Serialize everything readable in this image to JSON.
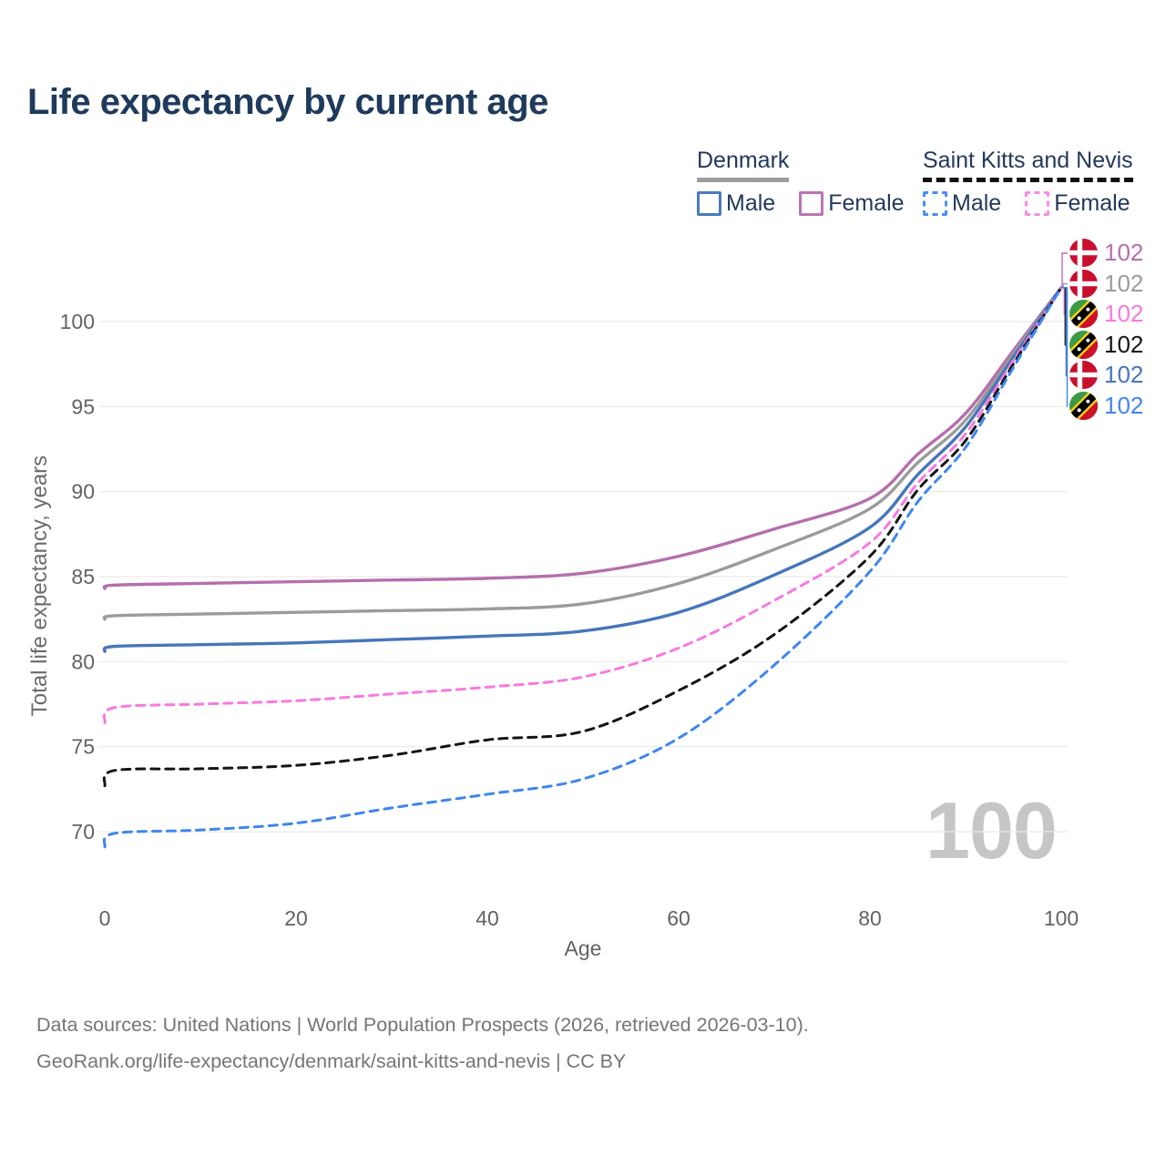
{
  "title": "Life expectancy by current age",
  "legend": {
    "groups": [
      {
        "label": "Denmark",
        "line_style": "solid",
        "underline_color": "#9e9e9e",
        "items": [
          {
            "label": "Male",
            "color": "#4a79bd"
          },
          {
            "label": "Female",
            "color": "#bb74b2"
          }
        ]
      },
      {
        "label": "Saint Kitts and Nevis",
        "line_style": "dashed",
        "underline_color": "#111111",
        "items": [
          {
            "label": "Male",
            "color": "#4a8cf5"
          },
          {
            "label": "Female",
            "color": "#fa8ae4"
          }
        ]
      }
    ]
  },
  "chart_data": {
    "type": "line",
    "title": "Life expectancy by current age",
    "xlabel": "Age",
    "ylabel": "Total life expectancy, years",
    "x_ticks": [
      0,
      20,
      40,
      60,
      80,
      100
    ],
    "y_ticks": [
      70,
      75,
      80,
      85,
      90,
      95,
      100
    ],
    "xlim": [
      0,
      100
    ],
    "ylim": [
      69,
      103
    ],
    "grid": "horizontal",
    "legend_position": "top-right",
    "watermark": "100",
    "ages": [
      0,
      1,
      10,
      20,
      30,
      40,
      50,
      60,
      70,
      80,
      85,
      90,
      95,
      100
    ],
    "series": [
      {
        "name": "Denmark Female",
        "country": "Denmark",
        "sex": "Female",
        "color": "#b56fad",
        "dash": false,
        "values": [
          84.3,
          84.5,
          84.6,
          84.7,
          84.8,
          84.9,
          85.2,
          86.2,
          87.8,
          89.6,
          92.2,
          94.6,
          98.3,
          102
        ],
        "end_label": "102"
      },
      {
        "name": "Denmark Both sexes",
        "country": "Denmark",
        "sex": "Both sexes",
        "color": "#9b9b9b",
        "dash": false,
        "values": [
          82.5,
          82.7,
          82.8,
          82.9,
          83.0,
          83.1,
          83.4,
          84.6,
          86.6,
          89.0,
          91.7,
          94.2,
          98.1,
          102
        ],
        "end_label": "102"
      },
      {
        "name": "Denmark Male",
        "country": "Denmark",
        "sex": "Male",
        "color": "#4676ba",
        "dash": false,
        "values": [
          80.6,
          80.9,
          81.0,
          81.1,
          81.3,
          81.5,
          81.8,
          82.9,
          85.1,
          87.9,
          91.0,
          93.8,
          97.9,
          102
        ],
        "end_label": "102"
      },
      {
        "name": "Saint Kitts and Nevis Female",
        "country": "Saint Kitts and Nevis",
        "sex": "Female",
        "color": "#f879e0",
        "dash": true,
        "values": [
          76.4,
          77.3,
          77.5,
          77.7,
          78.1,
          78.5,
          79.1,
          80.8,
          83.6,
          87.0,
          90.5,
          93.4,
          97.7,
          102
        ],
        "end_label": "102"
      },
      {
        "name": "Saint Kitts and Nevis Both sexes",
        "country": "Saint Kitts and Nevis",
        "sex": "Both sexes",
        "color": "#141414",
        "dash": true,
        "values": [
          72.7,
          73.6,
          73.7,
          73.9,
          74.5,
          75.4,
          75.9,
          78.3,
          81.6,
          86.2,
          90.1,
          93.0,
          97.5,
          102
        ],
        "end_label": "102"
      },
      {
        "name": "Saint Kitts and Nevis Male",
        "country": "Saint Kitts and Nevis",
        "sex": "Male",
        "color": "#3f86ef",
        "dash": true,
        "values": [
          69.1,
          69.9,
          70.1,
          70.5,
          71.4,
          72.2,
          73.1,
          75.5,
          79.8,
          85.3,
          89.4,
          92.6,
          97.3,
          102
        ],
        "end_label": "102"
      }
    ],
    "end_labels": [
      {
        "value": "102",
        "flag": "denmark",
        "color": "#b56fad",
        "series_index": 0
      },
      {
        "value": "102",
        "flag": "denmark",
        "color": "#9b9b9b",
        "series_index": 1
      },
      {
        "value": "102",
        "flag": "saint-kitts-and-nevis",
        "color": "#f879e0",
        "series_index": 3
      },
      {
        "value": "102",
        "flag": "saint-kitts-and-nevis",
        "color": "#141414",
        "series_index": 4
      },
      {
        "value": "102",
        "flag": "denmark",
        "color": "#4676ba",
        "series_index": 2
      },
      {
        "value": "102",
        "flag": "saint-kitts-and-nevis",
        "color": "#3f86ef",
        "series_index": 5
      }
    ]
  },
  "footer": {
    "line1": "Data sources: United Nations | World Population Prospects (2026, retrieved 2026-03-10).",
    "line2": "GeoRank.org/life-expectancy/denmark/saint-kitts-and-nevis | CC BY"
  }
}
